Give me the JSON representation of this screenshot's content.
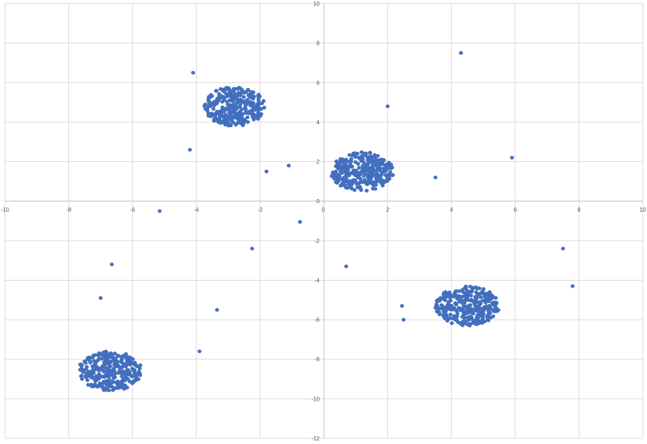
{
  "chart_data": {
    "type": "scatter",
    "title": "",
    "xlabel": "",
    "ylabel": "",
    "xlim": [
      -10,
      10
    ],
    "ylim": [
      -12,
      10
    ],
    "x_ticks": [
      "-10",
      "-8",
      "-6",
      "-4",
      "-2",
      "0",
      "2",
      "4",
      "6",
      "8",
      "10"
    ],
    "y_ticks": [
      "10",
      "8",
      "6",
      "4",
      "2",
      "0",
      "-2",
      "-4",
      "-6",
      "-8",
      "-10",
      "-12"
    ],
    "grid": true,
    "legend": "none",
    "marker_color": "#4472C4",
    "grid_color": "#D9D9D9",
    "axis_color": "#BFBFBF",
    "clusters": [
      {
        "center": [
          -2.8,
          4.8
        ],
        "radius_x": 0.95,
        "radius_y": 1.0,
        "points": 320
      },
      {
        "center": [
          1.2,
          1.5
        ],
        "radius_x": 1.0,
        "radius_y": 1.0,
        "points": 320
      },
      {
        "center": [
          -6.7,
          -8.6
        ],
        "radius_x": 1.0,
        "radius_y": 1.0,
        "points": 320
      },
      {
        "center": [
          4.5,
          -5.3
        ],
        "radius_x": 1.0,
        "radius_y": 1.0,
        "points": 320
      }
    ],
    "outliers": [
      [
        -4.1,
        6.5
      ],
      [
        -4.2,
        2.6
      ],
      [
        -1.8,
        1.5
      ],
      [
        -1.1,
        1.8
      ],
      [
        -0.75,
        -1.05
      ],
      [
        -5.15,
        -0.5
      ],
      [
        -6.65,
        -3.2
      ],
      [
        -7.0,
        -4.9
      ],
      [
        -2.25,
        -2.4
      ],
      [
        -3.35,
        -5.5
      ],
      [
        -3.9,
        -7.6
      ],
      [
        2.0,
        4.8
      ],
      [
        4.3,
        7.5
      ],
      [
        5.9,
        2.2
      ],
      [
        3.5,
        1.2
      ],
      [
        0.7,
        -3.3
      ],
      [
        2.45,
        -5.3
      ],
      [
        2.5,
        -6.0
      ],
      [
        7.5,
        -2.4
      ],
      [
        7.8,
        -4.3
      ]
    ]
  }
}
